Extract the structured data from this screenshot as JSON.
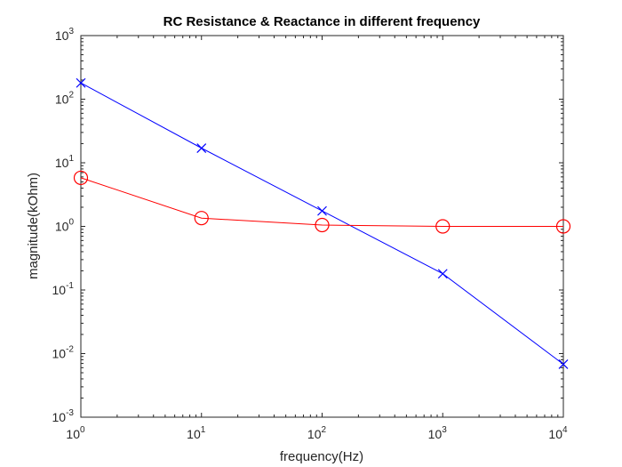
{
  "chart_data": {
    "type": "line",
    "title": "RC Resistance & Reactance in different frequency",
    "xlabel": "frequency(Hz)",
    "ylabel": "magnitude(kOhm)",
    "xscale": "log",
    "yscale": "log",
    "xlim": [
      1,
      10000
    ],
    "ylim": [
      0.001,
      1000
    ],
    "x_ticks": [
      {
        "base": "10",
        "exp": "0"
      },
      {
        "base": "10",
        "exp": "1"
      },
      {
        "base": "10",
        "exp": "2"
      },
      {
        "base": "10",
        "exp": "3"
      },
      {
        "base": "10",
        "exp": "4"
      }
    ],
    "y_ticks": [
      {
        "base": "10",
        "exp": "-3"
      },
      {
        "base": "10",
        "exp": "-2"
      },
      {
        "base": "10",
        "exp": "-1"
      },
      {
        "base": "10",
        "exp": "0"
      },
      {
        "base": "10",
        "exp": "1"
      },
      {
        "base": "10",
        "exp": "2"
      },
      {
        "base": "10",
        "exp": "3"
      }
    ],
    "x": [
      1,
      10,
      100,
      1000,
      10000
    ],
    "series": [
      {
        "color": "#0000ff",
        "marker": "x",
        "values": [
          180,
          17,
          1.75,
          0.18,
          0.0068
        ]
      },
      {
        "color": "#ff0000",
        "marker": "o",
        "values": [
          5.8,
          1.35,
          1.05,
          1.0,
          1.0
        ]
      }
    ],
    "grid": false,
    "box": true
  }
}
